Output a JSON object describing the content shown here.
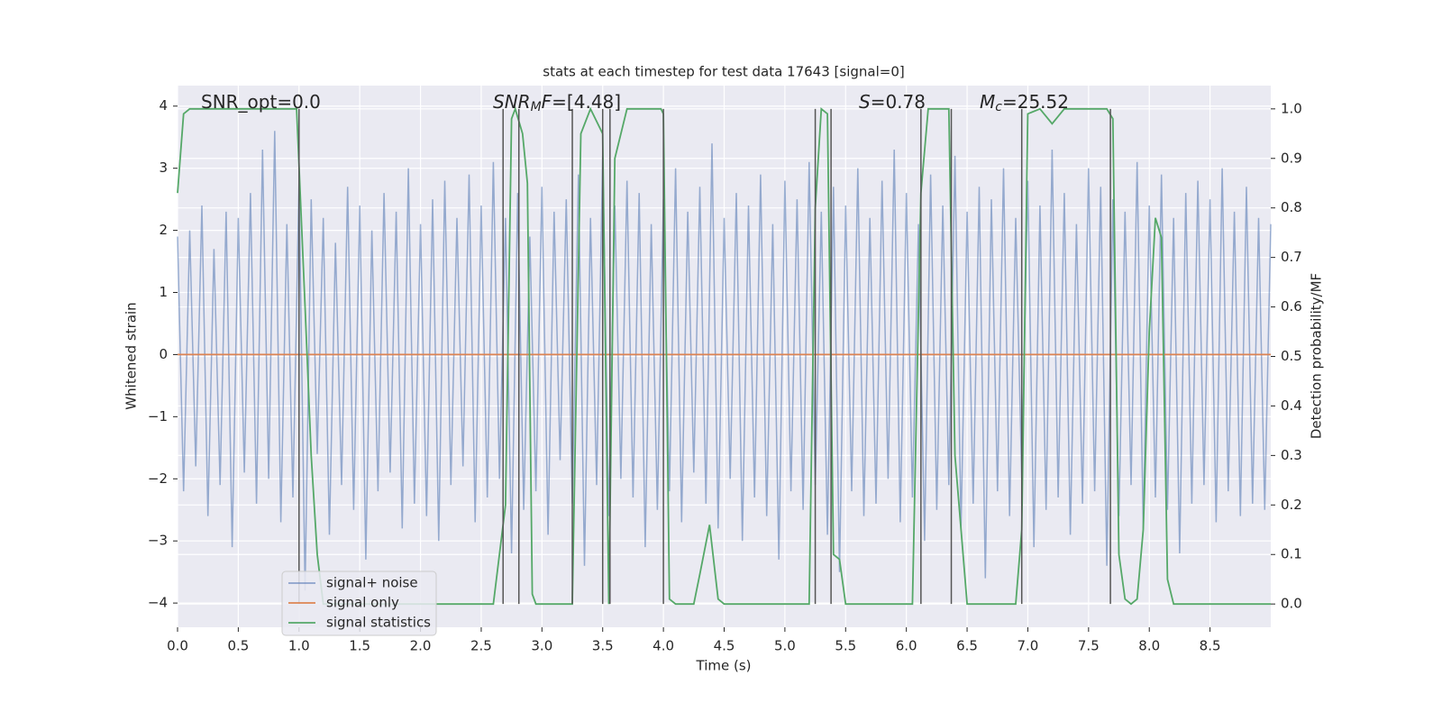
{
  "chart_data": {
    "type": "line",
    "title": "stats at each timestep for test data 17643 [signal=0]",
    "xlabel": "Time (s)",
    "ylabel": "Whitened strain",
    "y2label": "Detection probability/MF",
    "xlim": [
      0,
      9.0
    ],
    "ylim": [
      -4.39,
      4.33
    ],
    "y2lim": [
      -0.047,
      1.047
    ],
    "xticks": [
      {
        "value": 0,
        "label": "0.0"
      },
      0.5,
      {
        "value": 1,
        "label": "1.0"
      },
      1.5,
      {
        "value": 2,
        "label": "2.0"
      },
      2.5,
      {
        "value": 3,
        "label": "3.0"
      },
      3.5,
      {
        "value": 4,
        "label": "4.0"
      },
      4.5,
      {
        "value": 5,
        "label": "5.0"
      },
      5.5,
      {
        "value": 6,
        "label": "6.0"
      },
      6.5,
      {
        "value": 7,
        "label": "7.0"
      },
      7.5,
      {
        "value": 8,
        "label": "8.0"
      },
      8.5
    ],
    "yticks": [
      {
        "value": -4,
        "label": "−4"
      },
      {
        "value": -3,
        "label": "−3"
      },
      {
        "value": -2,
        "label": "−2"
      },
      {
        "value": -1,
        "label": "−1"
      },
      0,
      1,
      2,
      3,
      4
    ],
    "y2ticks": [
      {
        "value": 0,
        "label": "0.0"
      },
      0.1,
      0.2,
      0.3,
      0.4,
      0.5,
      0.6,
      0.7,
      0.8,
      0.9,
      {
        "value": 1,
        "label": "1.0"
      }
    ],
    "grid": true,
    "legend": "lower left",
    "series": [
      {
        "name": "signal+ noise",
        "color": "#4c72b0",
        "x": [
          0,
          0.05,
          0.1,
          0.15,
          0.2,
          0.25,
          0.3,
          0.35,
          0.4,
          0.45,
          0.5,
          0.55,
          0.6,
          0.65,
          0.7,
          0.75,
          0.8,
          0.85,
          0.9,
          0.95,
          1,
          1.05,
          1.1,
          1.15,
          1.2,
          1.25,
          1.3,
          1.35,
          1.4,
          1.45,
          1.5,
          1.55,
          1.6,
          1.65,
          1.7,
          1.75,
          1.8,
          1.85,
          1.9,
          1.95,
          2,
          2.05,
          2.1,
          2.15,
          2.2,
          2.25,
          2.3,
          2.35,
          2.4,
          2.45,
          2.5,
          2.55,
          2.6,
          2.65,
          2.7,
          2.75,
          2.8,
          2.85,
          2.9,
          2.95,
          3,
          3.05,
          3.1,
          3.15,
          3.2,
          3.25,
          3.3,
          3.35,
          3.4,
          3.45,
          3.5,
          3.55,
          3.6,
          3.65,
          3.7,
          3.75,
          3.8,
          3.85,
          3.9,
          3.95,
          4,
          4.05,
          4.1,
          4.15,
          4.2,
          4.25,
          4.3,
          4.35,
          4.4,
          4.45,
          4.5,
          4.55,
          4.6,
          4.65,
          4.7,
          4.75,
          4.8,
          4.85,
          4.9,
          4.95,
          5,
          5.05,
          5.1,
          5.15,
          5.2,
          5.25,
          5.3,
          5.35,
          5.4,
          5.45,
          5.5,
          5.55,
          5.6,
          5.65,
          5.7,
          5.75,
          5.8,
          5.85,
          5.9,
          5.95,
          6,
          6.05,
          6.1,
          6.15,
          6.2,
          6.25,
          6.3,
          6.35,
          6.4,
          6.45,
          6.5,
          6.55,
          6.6,
          6.65,
          6.7,
          6.75,
          6.8,
          6.85,
          6.9,
          6.95,
          7,
          7.05,
          7.1,
          7.15,
          7.2,
          7.25,
          7.3,
          7.35,
          7.4,
          7.45,
          7.5,
          7.55,
          7.6,
          7.65,
          7.7,
          7.75,
          7.8,
          7.85,
          7.9,
          7.95,
          8,
          8.05,
          8.1,
          8.15,
          8.2,
          8.25,
          8.3,
          8.35,
          8.4,
          8.45,
          8.5,
          8.55,
          8.6,
          8.65,
          8.7,
          8.75,
          8.8,
          8.85,
          8.9,
          8.95,
          9
        ],
        "values": [
          1.9,
          -2.2,
          2.0,
          -1.8,
          2.4,
          -2.6,
          1.7,
          -2.1,
          2.3,
          -3.1,
          2.2,
          -1.9,
          2.6,
          -2.4,
          3.3,
          -2.0,
          3.6,
          -2.7,
          2.1,
          -2.3,
          2.8,
          -3.8,
          2.5,
          -1.6,
          2.2,
          -2.9,
          1.8,
          -2.1,
          2.7,
          -2.5,
          2.4,
          -3.3,
          2.0,
          -2.2,
          2.6,
          -1.9,
          2.3,
          -2.8,
          3.0,
          -2.4,
          2.1,
          -2.6,
          2.5,
          -3.0,
          2.8,
          -2.1,
          2.2,
          -1.8,
          2.9,
          -2.7,
          2.4,
          -2.3,
          3.1,
          -2.0,
          2.2,
          -3.2,
          2.6,
          -2.5,
          1.9,
          -2.2,
          2.7,
          -2.9,
          2.3,
          -1.7,
          2.5,
          -2.4,
          2.9,
          -3.4,
          2.2,
          -2.1,
          3.2,
          -2.6,
          2.4,
          -2.0,
          2.8,
          -2.3,
          2.6,
          -3.1,
          2.1,
          -2.5,
          2.5,
          -2.2,
          3.0,
          -2.7,
          2.3,
          -1.9,
          2.7,
          -2.4,
          3.4,
          -2.8,
          2.2,
          -2.0,
          2.6,
          -3.0,
          2.4,
          -2.3,
          2.9,
          -2.6,
          2.1,
          -3.3,
          2.8,
          -2.2,
          2.5,
          -2.5,
          3.1,
          -2.1,
          2.3,
          -2.9,
          2.7,
          -3.5,
          2.4,
          -2.2,
          3.0,
          -2.6,
          2.2,
          -2.4,
          2.8,
          -2.0,
          3.3,
          -2.7,
          2.6,
          -2.3,
          2.1,
          -3.0,
          2.9,
          -2.5,
          2.4,
          -2.1,
          3.2,
          -2.8,
          2.3,
          -2.4,
          2.7,
          -3.6,
          2.5,
          -2.2,
          3.0,
          -2.6,
          2.2,
          -2.0,
          2.8,
          -3.1,
          2.4,
          -2.5,
          3.3,
          -2.3,
          2.6,
          -2.9,
          2.1,
          -2.4,
          3.0,
          -2.2,
          2.7,
          -3.4,
          2.5,
          -2.6,
          2.3,
          -2.1,
          3.1,
          -2.8,
          2.4,
          -2.3,
          2.9,
          -2.5,
          2.2,
          -3.2,
          2.6,
          -2.4,
          2.8,
          -2.1,
          2.5,
          -2.7,
          3.0,
          -2.2,
          2.3,
          -2.6,
          2.7,
          -2.4,
          2.2,
          -2.5,
          2.1
        ]
      },
      {
        "name": "signal only",
        "color": "#dd8452",
        "x": [
          0,
          9.0
        ],
        "values": [
          0,
          0
        ]
      },
      {
        "name": "signal statistics",
        "color": "#55a868",
        "axis": "y2",
        "x": [
          0,
          0.05,
          0.1,
          0.98,
          1.05,
          1.1,
          1.15,
          1.2,
          2.6,
          2.7,
          2.75,
          2.78,
          2.84,
          2.88,
          2.92,
          2.95,
          3.25,
          3.32,
          3.4,
          3.5,
          3.55,
          3.6,
          3.7,
          3.98,
          4.0,
          4.05,
          4.1,
          4.25,
          4.3,
          4.38,
          4.45,
          4.5,
          5.2,
          5.25,
          5.3,
          5.35,
          5.4,
          5.45,
          5.5,
          6.05,
          6.12,
          6.18,
          6.35,
          6.4,
          6.5,
          6.9,
          6.95,
          7.0,
          7.1,
          7.2,
          7.3,
          7.65,
          7.7,
          7.75,
          7.8,
          7.85,
          7.9,
          7.95,
          8.0,
          8.05,
          8.1,
          8.15,
          8.2,
          9.0
        ],
        "values": [
          0.83,
          0.99,
          1.0,
          1.0,
          0.6,
          0.3,
          0.1,
          0.0,
          0.0,
          0.2,
          0.98,
          1.0,
          0.95,
          0.85,
          0.02,
          0.0,
          0.0,
          0.95,
          1.0,
          0.95,
          0.0,
          0.9,
          1.0,
          1.0,
          0.99,
          0.01,
          0.0,
          0.0,
          0.06,
          0.16,
          0.01,
          0.0,
          0.0,
          0.8,
          1.0,
          0.99,
          0.1,
          0.09,
          0.0,
          0.0,
          0.83,
          1.0,
          1.0,
          0.3,
          0.0,
          0.0,
          0.15,
          0.99,
          1.0,
          0.97,
          1.0,
          1.0,
          0.98,
          0.1,
          0.01,
          0.0,
          0.01,
          0.15,
          0.55,
          0.78,
          0.74,
          0.05,
          0.0,
          0.0
        ]
      }
    ],
    "vlines": [
      1.0,
      2.68,
      2.81,
      3.25,
      3.5,
      3.56,
      4.0,
      5.25,
      5.38,
      6.12,
      6.37,
      6.95,
      7.68
    ],
    "vline_color": "#555555",
    "annotations": [
      [
        {
          "text": "SNR_opt=0.0",
          "style": "normal"
        }
      ],
      [
        {
          "text": "SNR",
          "style": "italic"
        },
        {
          "text": "M",
          "style": "sub"
        },
        {
          "text": "F",
          "style": "italic"
        },
        {
          "text": "=[4.48]",
          "style": "normal"
        }
      ],
      [
        {
          "text": "S",
          "style": "italic"
        },
        {
          "text": "=0.78",
          "style": "normal"
        }
      ],
      [
        {
          "text": "M",
          "style": "italic"
        },
        {
          "text": "c",
          "style": "sub"
        },
        {
          "text": "=25.52",
          "style": "normal"
        }
      ]
    ]
  }
}
